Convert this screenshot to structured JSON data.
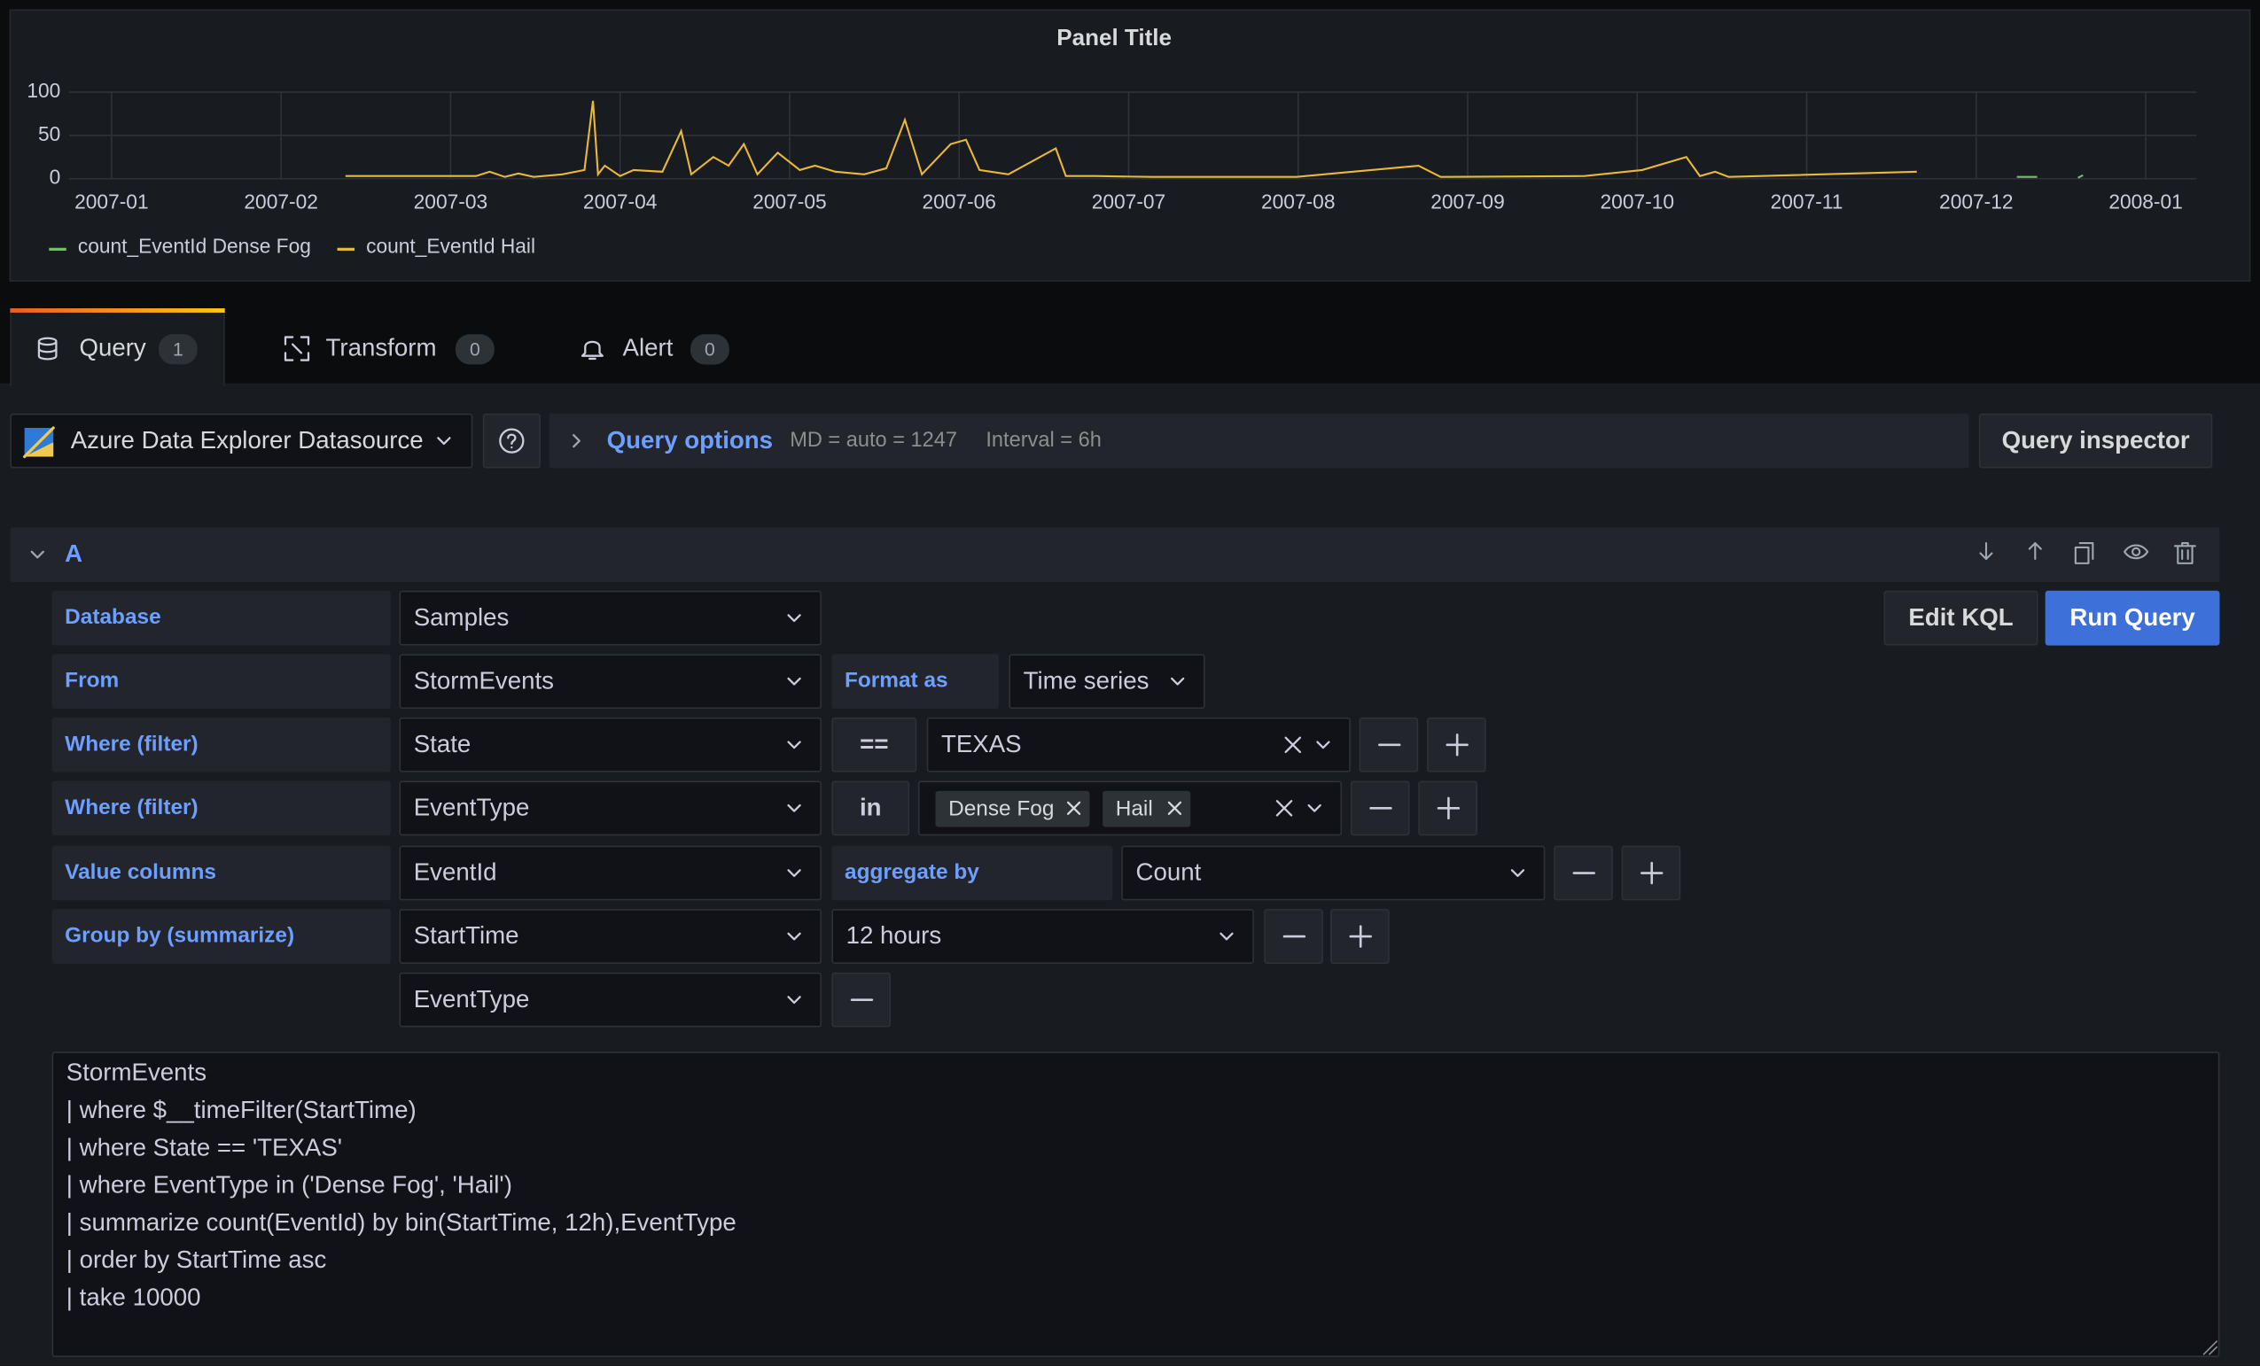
{
  "chart_data": {
    "type": "line",
    "title": "Panel Title",
    "x": [
      1.38,
      2.15,
      2.23,
      2.32,
      2.4,
      2.49,
      2.66,
      2.79,
      2.84,
      2.87,
      2.91,
      3.0,
      3.08,
      3.25,
      3.36,
      3.42,
      3.55,
      3.64,
      3.73,
      3.81,
      3.93,
      4.06,
      4.15,
      4.27,
      4.44,
      4.57,
      4.68,
      4.78,
      4.95,
      5.04,
      5.12,
      5.29,
      5.57,
      5.63,
      5.8,
      6.14,
      6.99,
      7.71,
      7.84,
      8.69,
      9.03,
      9.29,
      9.37,
      9.46,
      9.54,
      10.65,
      11.24,
      11.36,
      11.5,
      11.6,
      11.63
    ],
    "xlim": [
      -0.25,
      12.3
    ],
    "xticks": [
      {
        "value": 0,
        "label": "2007-01"
      },
      {
        "value": 1,
        "label": "2007-02"
      },
      {
        "value": 2,
        "label": "2007-03"
      },
      {
        "value": 3,
        "label": "2007-04"
      },
      {
        "value": 4,
        "label": "2007-05"
      },
      {
        "value": 5,
        "label": "2007-06"
      },
      {
        "value": 6,
        "label": "2007-07"
      },
      {
        "value": 7,
        "label": "2007-08"
      },
      {
        "value": 8,
        "label": "2007-09"
      },
      {
        "value": 9,
        "label": "2007-10"
      },
      {
        "value": 10,
        "label": "2007-11"
      },
      {
        "value": 11,
        "label": "2007-12"
      },
      {
        "value": 12,
        "label": "2008-01"
      }
    ],
    "ylim": [
      0,
      100
    ],
    "yticks": [
      0,
      50,
      100
    ],
    "grid": true,
    "series": [
      {
        "name": "count_EventId Dense Fog",
        "color": "#73bf69",
        "values": [
          null,
          null,
          null,
          null,
          null,
          null,
          null,
          null,
          null,
          null,
          null,
          null,
          null,
          null,
          null,
          null,
          null,
          null,
          null,
          null,
          null,
          null,
          null,
          null,
          null,
          null,
          null,
          null,
          null,
          null,
          null,
          null,
          null,
          null,
          null,
          null,
          null,
          null,
          null,
          null,
          null,
          null,
          null,
          null,
          null,
          null,
          2,
          2,
          null,
          1,
          4
        ]
      },
      {
        "name": "count_EventId Hail",
        "color": "#eab839",
        "values": [
          3,
          3,
          8,
          2,
          6,
          2,
          5,
          10,
          90,
          5,
          15,
          3,
          10,
          8,
          55,
          5,
          25,
          15,
          40,
          5,
          30,
          10,
          15,
          8,
          5,
          12,
          68,
          5,
          40,
          45,
          10,
          5,
          35,
          3,
          3,
          2,
          2,
          15,
          2,
          3,
          10,
          25,
          3,
          8,
          2,
          8,
          null,
          null,
          null,
          null,
          null
        ]
      }
    ]
  },
  "tabs": [
    {
      "label": "Query",
      "count": 1
    },
    {
      "label": "Transform",
      "count": 0
    },
    {
      "label": "Alert",
      "count": 0
    }
  ],
  "toolbar": {
    "datasource": "Azure Data Explorer Datasource",
    "query_options": "Query options",
    "md": "MD = auto = 1247",
    "interval": "Interval = 6h",
    "inspector": "Query inspector"
  },
  "query": {
    "ref": "A",
    "edit_kql": "Edit KQL",
    "run": "Run Query",
    "rows": [
      {
        "label": "Database",
        "field": "Samples"
      },
      {
        "label": "From",
        "field": "StormEvents",
        "extra_label": "Format as",
        "extra": "Time series"
      },
      {
        "label": "Where (filter)",
        "field": "State",
        "op": "==",
        "value": "TEXAS"
      },
      {
        "label": "Where (filter)",
        "field": "EventType",
        "op": "in",
        "tags": [
          "Dense Fog",
          "Hail"
        ]
      },
      {
        "label": "Value columns",
        "field": "EventId",
        "extra_label": "aggregate by",
        "extra": "Count"
      },
      {
        "label": "Group by (summarize)",
        "field": "StartTime",
        "interval": "12 hours",
        "field2": "EventType"
      }
    ]
  },
  "kql": {
    "lines": [
      "StormEvents",
      "| where $__timeFilter(StartTime)",
      "| where State == 'TEXAS'",
      "| where EventType in ('Dense Fog', 'Hail')",
      "| summarize count(EventId) by bin(StartTime, 12h),EventType",
      "| order by StartTime asc",
      "| take 10000"
    ]
  }
}
